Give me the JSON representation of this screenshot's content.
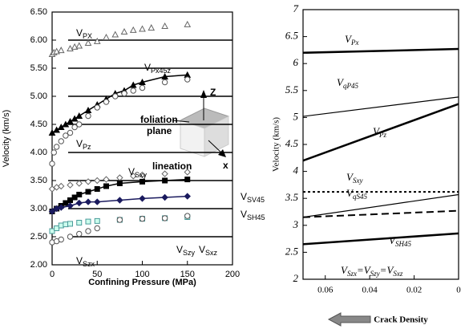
{
  "chart_data": [
    {
      "type": "scatter",
      "xlabel": "Confining Pressure (MPa)",
      "ylabel": "Velocity (km/s)",
      "xlim": [
        0,
        200
      ],
      "xticks": [
        0,
        50,
        100,
        150,
        200
      ],
      "ylim": [
        2,
        6.5
      ],
      "yticks": [
        {
          "value": 2,
          "label": "2.00"
        },
        {
          "value": 2.5,
          "label": "2.50"
        },
        {
          "value": 3,
          "label": "3.00"
        },
        {
          "value": 3.5,
          "label": "3.50"
        },
        {
          "value": 4,
          "label": "4.00"
        },
        {
          "value": 4.5,
          "label": "4.50"
        },
        {
          "value": 5,
          "label": "5.00"
        },
        {
          "value": 5.5,
          "label": "5.50"
        },
        {
          "value": 6,
          "label": "6.00"
        },
        {
          "value": 6.5,
          "label": "6.50"
        }
      ],
      "grid": true,
      "inset": {
        "axis_z": "Z",
        "plane_label": [
          "foliation",
          "plane"
        ],
        "axis_x": "x",
        "lineation": "lineation"
      },
      "series": [
        {
          "label": [
            "V",
            "PX"
          ],
          "marker": "triangle-open",
          "color": "#666",
          "x": [
            0,
            2,
            5,
            10,
            20,
            25,
            30,
            40,
            50,
            60,
            70,
            80,
            90,
            100,
            110,
            125,
            150
          ],
          "values": [
            5.75,
            5.78,
            5.8,
            5.82,
            5.85,
            5.88,
            5.9,
            5.95,
            5.98,
            6.05,
            6.1,
            6.15,
            6.18,
            6.2,
            6.22,
            6.25,
            6.28
          ]
        },
        {
          "label": [
            "V",
            "Px45z"
          ],
          "marker": "triangle-filled",
          "color": "#000",
          "line": true,
          "x": [
            0,
            5,
            10,
            15,
            20,
            25,
            30,
            40,
            50,
            60,
            70,
            80,
            90,
            100,
            125,
            150
          ],
          "values": [
            4.35,
            4.4,
            4.45,
            4.5,
            4.55,
            4.6,
            4.65,
            4.75,
            4.85,
            4.95,
            5.05,
            5.1,
            5.2,
            5.25,
            5.35,
            5.38
          ]
        },
        {
          "label": [
            "V",
            "Pz"
          ],
          "marker": "circle-open",
          "color": "#555",
          "x": [
            0,
            2,
            5,
            10,
            15,
            20,
            25,
            30,
            40,
            50,
            60,
            70,
            80,
            90,
            100,
            125,
            150
          ],
          "values": [
            3.8,
            4.0,
            4.1,
            4.2,
            4.3,
            4.35,
            4.45,
            4.5,
            4.65,
            4.8,
            4.9,
            5.0,
            5.05,
            5.1,
            5.15,
            5.25,
            5.3
          ]
        },
        {
          "label": [
            "V",
            "Sxy"
          ],
          "marker": "diamond-open",
          "color": "#666",
          "x": [
            0,
            5,
            10,
            20,
            30,
            40,
            50,
            60,
            75,
            90,
            100,
            125,
            150
          ],
          "values": [
            3.35,
            3.38,
            3.4,
            3.42,
            3.45,
            3.48,
            3.5,
            3.52,
            3.55,
            3.58,
            3.6,
            3.62,
            3.65
          ]
        },
        {
          "label": [
            "V",
            "SV45"
          ],
          "marker": "square-filled",
          "color": "#000",
          "line": true,
          "x": [
            0,
            5,
            10,
            15,
            20,
            25,
            30,
            40,
            50,
            60,
            75,
            100,
            125,
            150
          ],
          "values": [
            2.95,
            3.0,
            3.05,
            3.1,
            3.15,
            3.2,
            3.25,
            3.3,
            3.35,
            3.4,
            3.45,
            3.48,
            3.5,
            3.52
          ]
        },
        {
          "label": [
            "V",
            "SH45"
          ],
          "marker": "diamond-filled",
          "color": "#1a1a5e",
          "line": true,
          "x": [
            0,
            5,
            10,
            20,
            30,
            40,
            50,
            75,
            100,
            125,
            150
          ],
          "values": [
            2.95,
            3.0,
            3.02,
            3.05,
            3.1,
            3.12,
            3.12,
            3.15,
            3.18,
            3.2,
            3.22
          ]
        },
        {
          "label": [
            "V",
            "Szy"
          ],
          "marker": "square-open",
          "color": "#4a9a9a",
          "x": [
            0,
            5,
            10,
            15,
            20,
            30,
            40,
            50,
            75,
            100,
            125,
            150
          ],
          "values": [
            2.6,
            2.65,
            2.7,
            2.72,
            2.73,
            2.75,
            2.77,
            2.78,
            2.8,
            2.82,
            2.83,
            2.85
          ]
        },
        {
          "label": [
            "V",
            "Sxz"
          ],
          "marker": "circle-open",
          "color": "#555",
          "x": [
            75,
            100,
            125,
            150
          ],
          "values": [
            2.8,
            2.82,
            2.83,
            2.87
          ]
        },
        {
          "label": [
            "V",
            "Szx"
          ],
          "marker": "circle-open",
          "color": "#555",
          "x": [
            0,
            5,
            10,
            20,
            30,
            40,
            50
          ],
          "values": [
            2.4,
            2.42,
            2.45,
            2.5,
            2.55,
            2.6,
            2.65
          ]
        }
      ]
    },
    {
      "type": "line",
      "xlabel": "Crack Density",
      "ylabel": "Velocity (km/s)",
      "xlim": [
        0.07,
        0
      ],
      "xticks": [
        0.06,
        0.04,
        0.02,
        0
      ],
      "ylim": [
        2,
        7
      ],
      "yticks": [
        2,
        2.5,
        3,
        3.5,
        4,
        4.5,
        5,
        5.5,
        6,
        6.5,
        7
      ],
      "x": [
        0.07,
        0
      ],
      "series": [
        {
          "label": [
            "V",
            "Px"
          ],
          "style": "solid",
          "width": 2.5,
          "values": [
            6.2,
            6.27
          ]
        },
        {
          "label": [
            "V",
            "qP45"
          ],
          "style": "solid",
          "width": 1.2,
          "values": [
            5.02,
            5.38
          ]
        },
        {
          "label": [
            "V",
            "Pz"
          ],
          "style": "solid",
          "width": 2.5,
          "values": [
            4.2,
            5.25
          ]
        },
        {
          "label": [
            "V",
            "Sxy"
          ],
          "style": "dotted",
          "width": 2,
          "values": [
            3.62,
            3.62
          ]
        },
        {
          "label": [
            "V",
            "qS45"
          ],
          "style": "solid",
          "width": 1.2,
          "values": [
            3.15,
            3.57
          ]
        },
        {
          "label": [
            "V",
            "SH45"
          ],
          "style": "dashed",
          "width": 2,
          "values": [
            3.15,
            3.27
          ]
        },
        {
          "label": [
            "V",
            "Szx",
            "=V",
            "Szy",
            "=V",
            "Sxz"
          ],
          "style": "solid",
          "width": 2.5,
          "values": [
            2.65,
            2.85
          ]
        }
      ]
    }
  ]
}
